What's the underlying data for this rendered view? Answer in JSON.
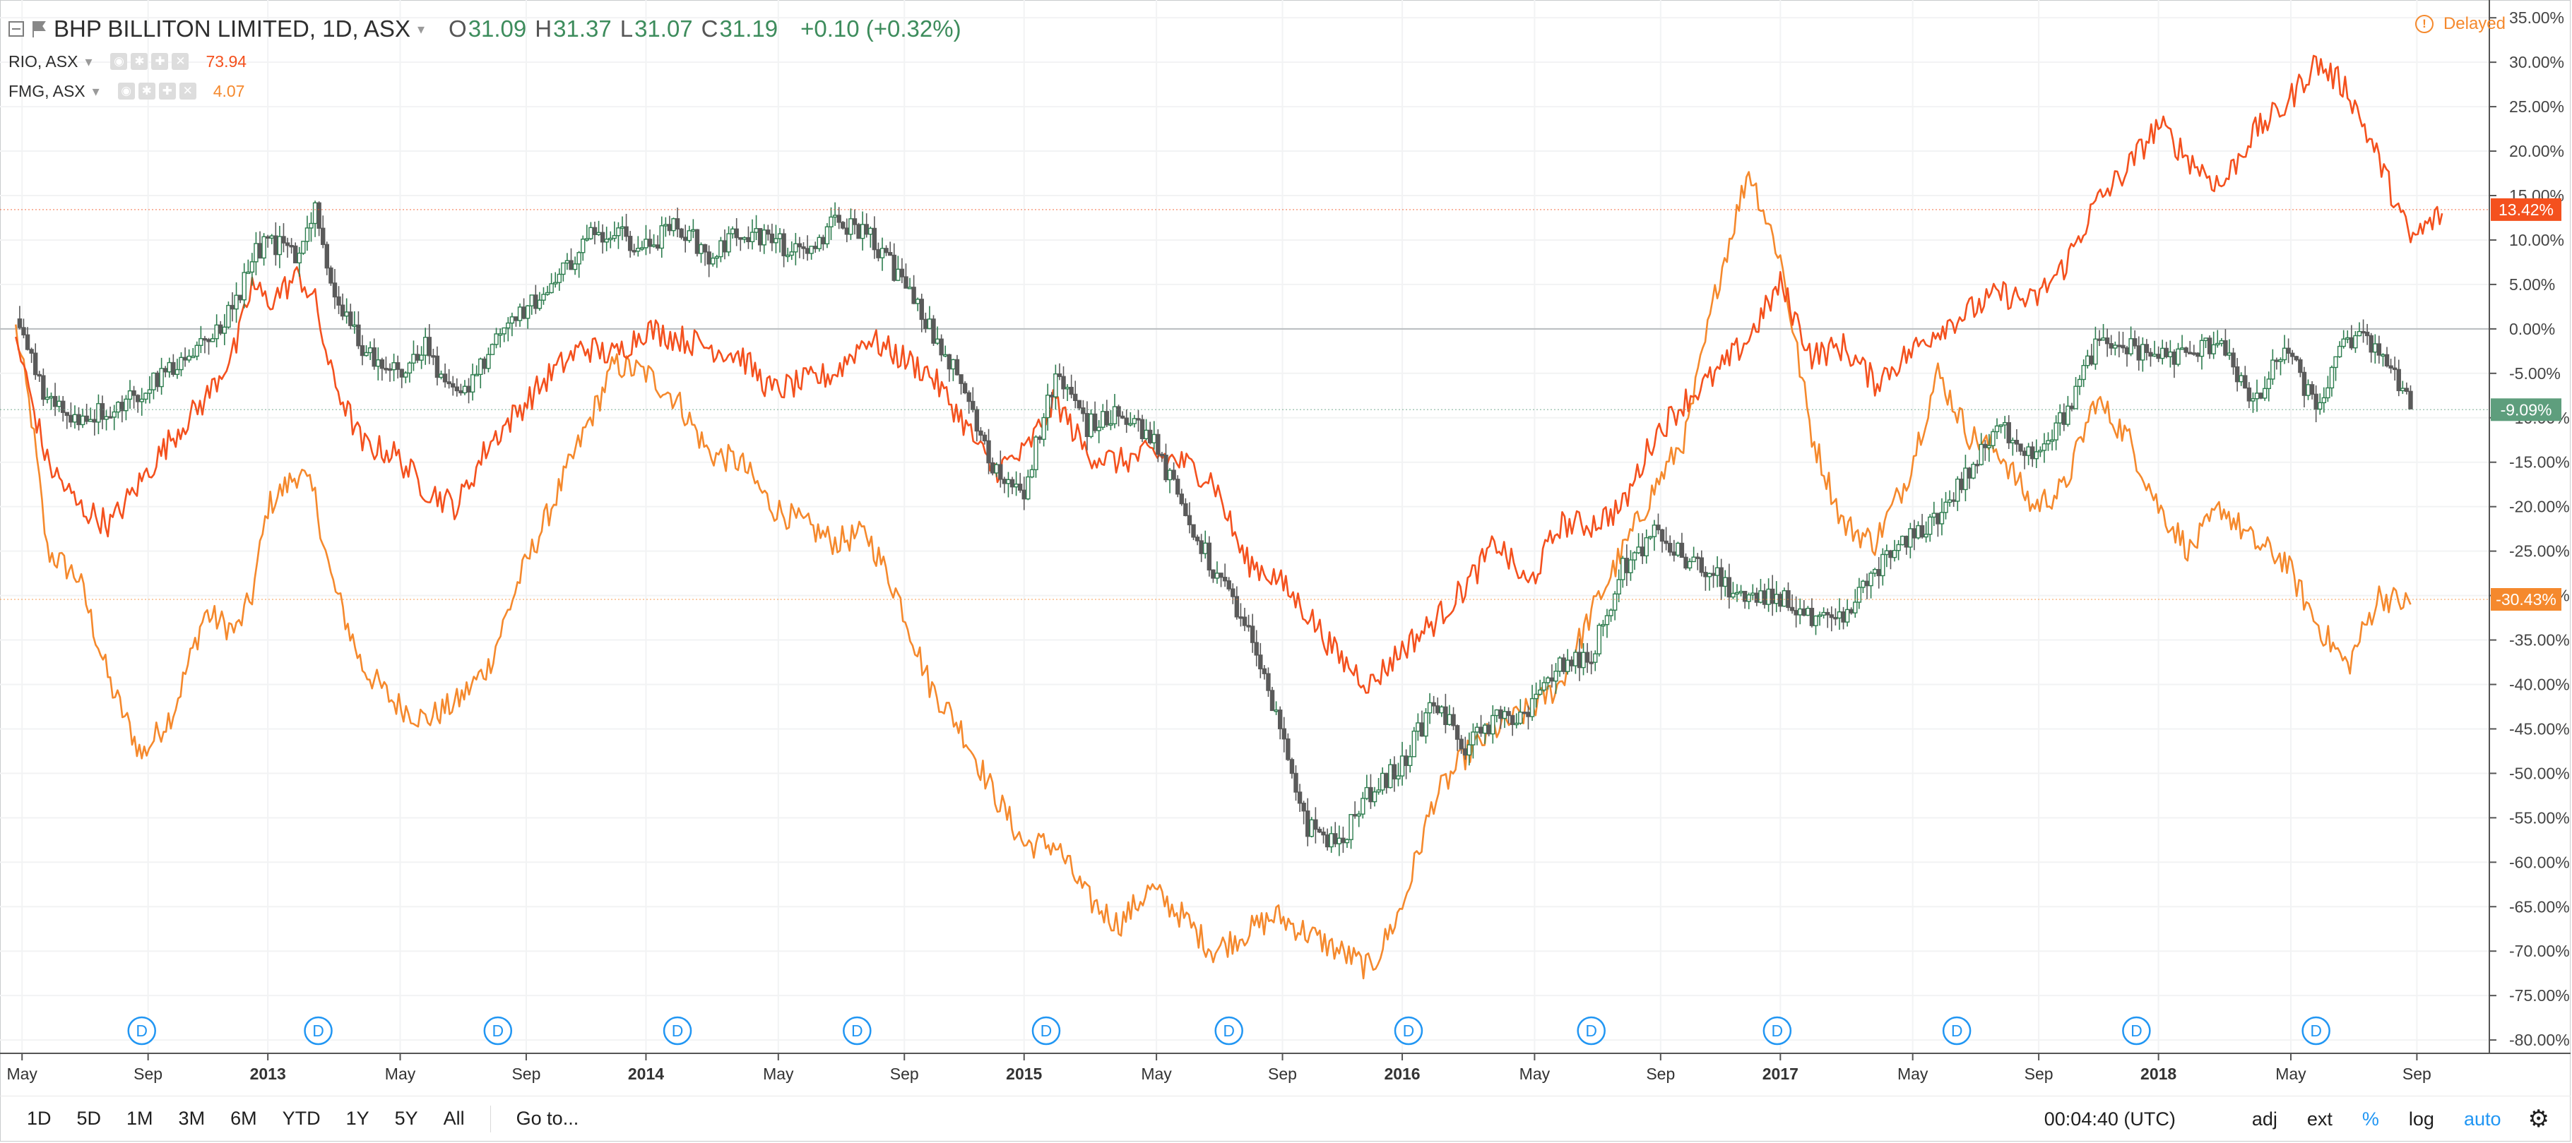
{
  "header": {
    "main_symbol": "BHP BILLITON LIMITED, 1D, ASX",
    "ohlc": {
      "o_label": "O",
      "o": "31.09",
      "h_label": "H",
      "h": "31.37",
      "l_label": "L",
      "l": "31.07",
      "c_label": "C",
      "c": "31.19"
    },
    "change": "+0.10 (+0.32%)",
    "delayed": "Delayed",
    "comparisons": [
      {
        "symbol": "RIO, ASX",
        "value": "73.94",
        "color": "#f4511e"
      },
      {
        "symbol": "FMG, ASX",
        "value": "4.07",
        "color": "#f5892d"
      }
    ]
  },
  "chart_data": {
    "type": "line",
    "y_axis_unit": "%",
    "ylim": [
      -81.5,
      37
    ],
    "y_ticks": [
      "35.00%",
      "30.00%",
      "25.00%",
      "20.00%",
      "15.00%",
      "10.00%",
      "5.00%",
      "0.00%",
      "-5.00%",
      "-10.00%",
      "-15.00%",
      "-20.00%",
      "-25.00%",
      "-30.00%",
      "-35.00%",
      "-40.00%",
      "-45.00%",
      "-50.00%",
      "-55.00%",
      "-60.00%",
      "-65.00%",
      "-70.00%",
      "-75.00%",
      "-80.00%"
    ],
    "x_ticks": [
      "May",
      "Sep",
      "2013",
      "May",
      "Sep",
      "2014",
      "May",
      "Sep",
      "2015",
      "May",
      "Sep",
      "2016",
      "May",
      "Sep",
      "2017",
      "May",
      "Sep",
      "2018",
      "May",
      "Sep"
    ],
    "x_tick_positions": [
      0.2,
      4.2,
      8,
      12.2,
      16.2,
      20,
      24.2,
      28.2,
      32,
      36.2,
      40.2,
      44,
      48.2,
      52.2,
      56,
      60.2,
      64.2,
      68,
      72.2,
      76.2
    ],
    "x_bold": [
      "2013",
      "2014",
      "2015",
      "2016",
      "2017",
      "2018"
    ],
    "x_range": [
      -0.5,
      78.5
    ],
    "dividend_markers": [
      4.0,
      9.6,
      15.3,
      21.0,
      26.7,
      32.7,
      38.5,
      44.2,
      50.0,
      55.9,
      61.6,
      67.3,
      73.0
    ],
    "dividend_label": "D",
    "zero_line": 0,
    "series": [
      {
        "name": "BHP, ASX",
        "style": "candles",
        "colors": {
          "up": "#2e7d4f",
          "down": "#5a5a5a"
        },
        "last_label": "-9.09%",
        "label_color": "#5e9e7d",
        "points": [
          [
            0,
            1
          ],
          [
            0.5,
            -3
          ],
          [
            1,
            -8
          ],
          [
            2,
            -10
          ],
          [
            3,
            -9
          ],
          [
            4,
            -7
          ],
          [
            5,
            -4
          ],
          [
            6,
            -2
          ],
          [
            7,
            3
          ],
          [
            7.5,
            8
          ],
          [
            8,
            10
          ],
          [
            9,
            8
          ],
          [
            9.5,
            13
          ],
          [
            10,
            5
          ],
          [
            11,
            -2
          ],
          [
            12,
            -5
          ],
          [
            13,
            -2
          ],
          [
            14,
            -8
          ],
          [
            15,
            -3
          ],
          [
            16,
            2
          ],
          [
            17,
            4
          ],
          [
            18,
            10
          ],
          [
            19,
            11
          ],
          [
            20,
            9
          ],
          [
            21,
            12
          ],
          [
            22,
            8
          ],
          [
            23,
            11
          ],
          [
            24,
            10
          ],
          [
            25,
            8
          ],
          [
            26,
            12
          ],
          [
            27,
            11
          ],
          [
            28,
            6
          ],
          [
            28.5,
            3
          ],
          [
            29,
            0
          ],
          [
            30,
            -6
          ],
          [
            31,
            -16
          ],
          [
            32,
            -18
          ],
          [
            33,
            -5
          ],
          [
            34,
            -11
          ],
          [
            35,
            -9
          ],
          [
            36,
            -12
          ],
          [
            37,
            -20
          ],
          [
            38,
            -27
          ],
          [
            39,
            -33
          ],
          [
            40,
            -44
          ],
          [
            41,
            -56
          ],
          [
            42,
            -58
          ],
          [
            43,
            -52
          ],
          [
            44,
            -49
          ],
          [
            45,
            -42
          ],
          [
            46,
            -47
          ],
          [
            47,
            -44
          ],
          [
            48,
            -43
          ],
          [
            49,
            -38
          ],
          [
            50,
            -37
          ],
          [
            51,
            -27
          ],
          [
            52,
            -23
          ],
          [
            53,
            -26
          ],
          [
            54,
            -28
          ],
          [
            55,
            -31
          ],
          [
            56,
            -30
          ],
          [
            57,
            -33
          ],
          [
            58,
            -33
          ],
          [
            59,
            -27
          ],
          [
            60,
            -24
          ],
          [
            61,
            -21
          ],
          [
            62,
            -16
          ],
          [
            63,
            -11
          ],
          [
            64,
            -14
          ],
          [
            65,
            -10
          ],
          [
            66,
            -2
          ],
          [
            67,
            -2
          ],
          [
            68,
            -3
          ],
          [
            69,
            -3
          ],
          [
            70,
            -1
          ],
          [
            71,
            -9
          ],
          [
            72,
            -2
          ],
          [
            73,
            -9
          ],
          [
            74,
            -1
          ],
          [
            75,
            -2
          ],
          [
            76,
            -9
          ]
        ]
      },
      {
        "name": "RIO, ASX",
        "style": "line",
        "color": "#f4511e",
        "last_label": "13.42%",
        "label_color": "#f4511e",
        "points": [
          [
            0,
            -1
          ],
          [
            0.5,
            -8
          ],
          [
            1,
            -15
          ],
          [
            2,
            -20
          ],
          [
            3,
            -22
          ],
          [
            4,
            -17
          ],
          [
            5,
            -12
          ],
          [
            6,
            -8
          ],
          [
            7,
            -2
          ],
          [
            7.5,
            5
          ],
          [
            8,
            3
          ],
          [
            9,
            6
          ],
          [
            9.5,
            3
          ],
          [
            10,
            -5
          ],
          [
            11,
            -13
          ],
          [
            12,
            -14
          ],
          [
            13,
            -18
          ],
          [
            14,
            -20
          ],
          [
            15,
            -13
          ],
          [
            16,
            -9
          ],
          [
            17,
            -5
          ],
          [
            18,
            -2
          ],
          [
            19,
            -3
          ],
          [
            20,
            0
          ],
          [
            21,
            -1
          ],
          [
            22,
            -2
          ],
          [
            23,
            -3
          ],
          [
            24,
            -7
          ],
          [
            25,
            -6
          ],
          [
            26,
            -5
          ],
          [
            27,
            -1
          ],
          [
            28,
            -3
          ],
          [
            29,
            -5
          ],
          [
            30,
            -10
          ],
          [
            31,
            -16
          ],
          [
            32,
            -14
          ],
          [
            33,
            -8
          ],
          [
            34,
            -14
          ],
          [
            35,
            -15
          ],
          [
            36,
            -14
          ],
          [
            37,
            -15
          ],
          [
            38,
            -17
          ],
          [
            39,
            -26
          ],
          [
            40,
            -28
          ],
          [
            41,
            -32
          ],
          [
            42,
            -37
          ],
          [
            43,
            -40
          ],
          [
            44,
            -36
          ],
          [
            45,
            -33
          ],
          [
            46,
            -29
          ],
          [
            47,
            -24
          ],
          [
            48,
            -29
          ],
          [
            49,
            -22
          ],
          [
            50,
            -22
          ],
          [
            51,
            -20
          ],
          [
            52,
            -12
          ],
          [
            53,
            -8
          ],
          [
            54,
            -5
          ],
          [
            55,
            -1
          ],
          [
            56,
            5
          ],
          [
            57,
            -3
          ],
          [
            58,
            -2
          ],
          [
            59,
            -6
          ],
          [
            60,
            -3
          ],
          [
            61,
            0
          ],
          [
            62,
            2
          ],
          [
            63,
            4
          ],
          [
            64,
            3
          ],
          [
            65,
            7
          ],
          [
            66,
            14
          ],
          [
            67,
            18
          ],
          [
            68,
            23
          ],
          [
            69,
            19
          ],
          [
            70,
            16
          ],
          [
            71,
            22
          ],
          [
            72,
            25
          ],
          [
            73,
            30
          ],
          [
            74,
            27
          ],
          [
            75,
            19
          ],
          [
            76,
            10
          ],
          [
            77,
            13
          ]
        ]
      },
      {
        "name": "FMG, ASX",
        "style": "line",
        "color": "#f5892d",
        "last_label": "-30.43%",
        "label_color": "#f5892d",
        "points": [
          [
            0,
            0
          ],
          [
            0.5,
            -10
          ],
          [
            1,
            -25
          ],
          [
            2,
            -28
          ],
          [
            3,
            -40
          ],
          [
            4,
            -48
          ],
          [
            5,
            -43
          ],
          [
            6,
            -32
          ],
          [
            7,
            -34
          ],
          [
            7.5,
            -30
          ],
          [
            8,
            -20
          ],
          [
            9,
            -16
          ],
          [
            9.5,
            -19
          ],
          [
            10,
            -28
          ],
          [
            11,
            -38
          ],
          [
            12,
            -42
          ],
          [
            13,
            -44
          ],
          [
            14,
            -42
          ],
          [
            15,
            -38
          ],
          [
            16,
            -28
          ],
          [
            17,
            -20
          ],
          [
            18,
            -12
          ],
          [
            19,
            -4
          ],
          [
            20,
            -5
          ],
          [
            21,
            -8
          ],
          [
            22,
            -14
          ],
          [
            23,
            -15
          ],
          [
            24,
            -20
          ],
          [
            25,
            -22
          ],
          [
            26,
            -24
          ],
          [
            27,
            -23
          ],
          [
            28,
            -30
          ],
          [
            29,
            -40
          ],
          [
            30,
            -45
          ],
          [
            31,
            -52
          ],
          [
            32,
            -58
          ],
          [
            33,
            -58
          ],
          [
            34,
            -64
          ],
          [
            35,
            -67
          ],
          [
            36,
            -63
          ],
          [
            37,
            -66
          ],
          [
            38,
            -70
          ],
          [
            39,
            -68
          ],
          [
            40,
            -66
          ],
          [
            41,
            -68
          ],
          [
            42,
            -70
          ],
          [
            43,
            -72
          ],
          [
            44,
            -65
          ],
          [
            45,
            -53
          ],
          [
            46,
            -48
          ],
          [
            47,
            -45
          ],
          [
            48,
            -43
          ],
          [
            49,
            -40
          ],
          [
            50,
            -32
          ],
          [
            51,
            -25
          ],
          [
            52,
            -18
          ],
          [
            53,
            -12
          ],
          [
            54,
            5
          ],
          [
            55,
            18
          ],
          [
            56,
            8
          ],
          [
            57,
            -12
          ],
          [
            58,
            -22
          ],
          [
            59,
            -24
          ],
          [
            60,
            -17
          ],
          [
            61,
            -5
          ],
          [
            62,
            -12
          ],
          [
            63,
            -14
          ],
          [
            64,
            -20
          ],
          [
            65,
            -18
          ],
          [
            66,
            -8
          ],
          [
            67,
            -12
          ],
          [
            68,
            -20
          ],
          [
            69,
            -25
          ],
          [
            70,
            -20
          ],
          [
            71,
            -24
          ],
          [
            72,
            -26
          ],
          [
            73,
            -33
          ],
          [
            74,
            -38
          ],
          [
            75,
            -30
          ],
          [
            76,
            -31
          ]
        ]
      }
    ]
  },
  "toolbar": {
    "timeframes": [
      "1D",
      "5D",
      "1M",
      "3M",
      "6M",
      "YTD",
      "1Y",
      "5Y",
      "All"
    ],
    "goto": "Go to...",
    "time": "00:04:40 (UTC)",
    "adj": "adj",
    "ext": "ext",
    "percent": "%",
    "log": "log",
    "auto": "auto",
    "settings_icon": "gear-icon"
  }
}
